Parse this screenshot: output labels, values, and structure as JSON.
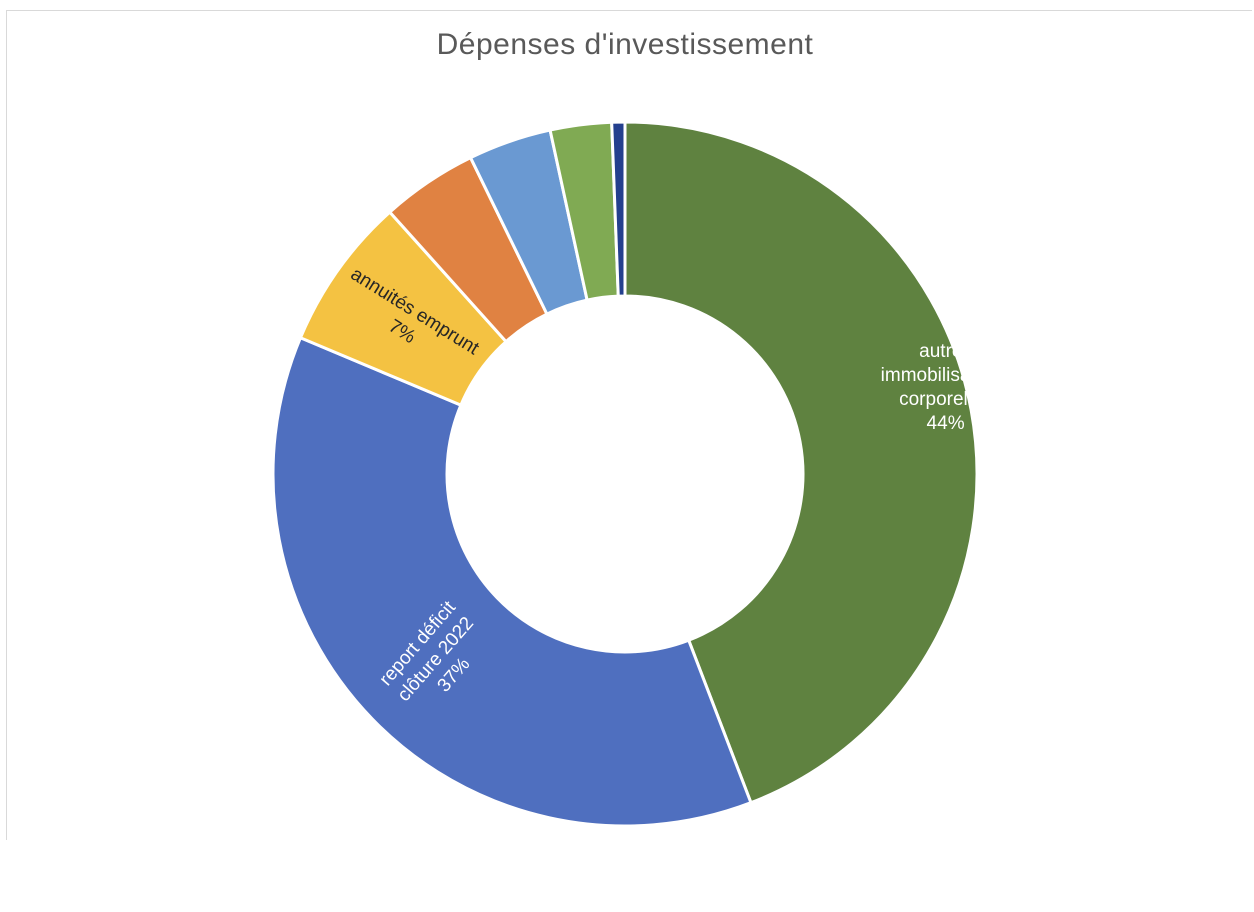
{
  "chart_data": {
    "type": "pie",
    "subtype": "donut",
    "title": "Dépenses d'investissement",
    "legend": "none",
    "slices": [
      {
        "name": "autres immobilisations corporelles",
        "value": 44,
        "label_lines": [
          "autres",
          "immobilisations",
          "corporelles",
          "44%"
        ],
        "color": "#5f8240",
        "label_color": "#ffffff"
      },
      {
        "name": "report déficit clôture 2022",
        "value": 37,
        "label_lines": [
          "report déficit",
          "clôture 2022",
          "37%"
        ],
        "color": "#4f6fbf",
        "label_color": "#ffffff"
      },
      {
        "name": "annuités emprunt",
        "value": 7,
        "label_lines": [
          "annuités emprunt",
          "7%"
        ],
        "color": "#f4c242",
        "label_color": "#262626"
      },
      {
        "name": "",
        "value": 4.4,
        "label_lines": [],
        "color": "#e08242",
        "label_color": "#262626"
      },
      {
        "name": "",
        "value": 3.8,
        "label_lines": [],
        "color": "#6a99d2",
        "label_color": "#262626"
      },
      {
        "name": "",
        "value": 2.8,
        "label_lines": [],
        "color": "#80aa53",
        "label_color": "#262626"
      },
      {
        "name": "",
        "value": 0.6,
        "label_lines": [],
        "color": "#24408e",
        "label_color": "#262626"
      }
    ]
  }
}
